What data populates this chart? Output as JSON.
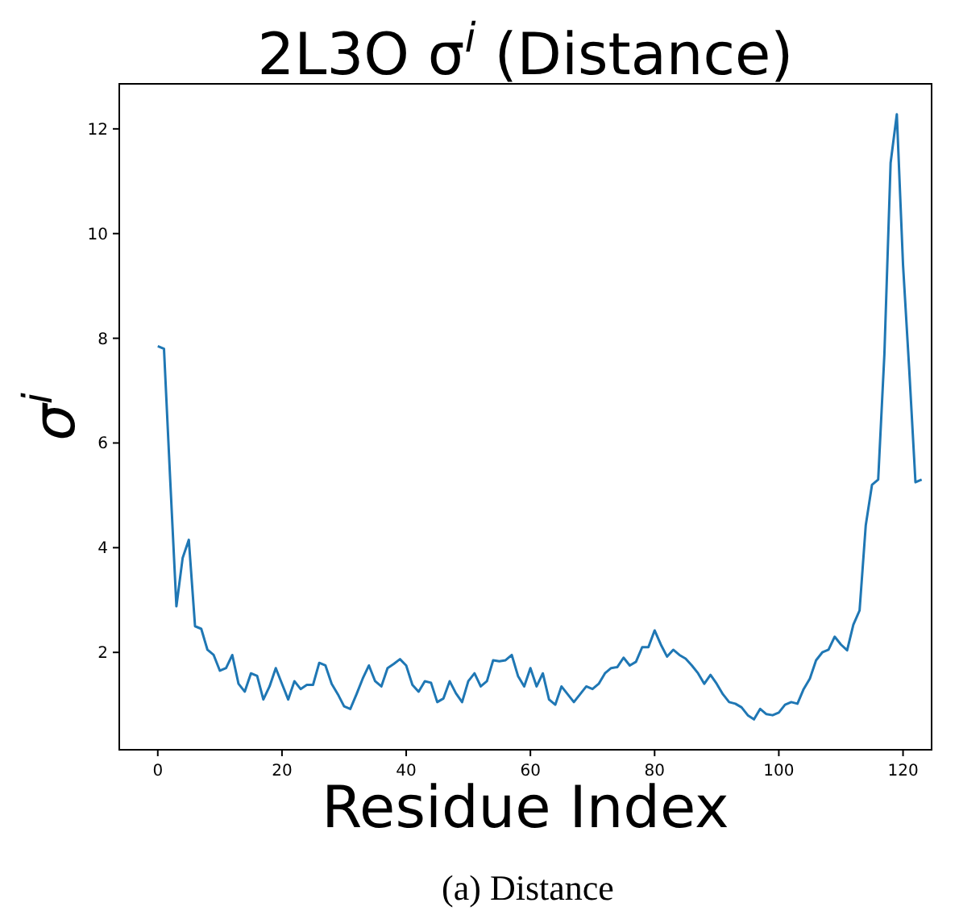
{
  "chart_data": {
    "type": "line",
    "title": "2L3O σ$^{i}$ (Distance)",
    "xlabel": "Residue Index",
    "ylabel": "σ$^{i}$",
    "annotations": [
      "(a) Distance"
    ],
    "x": [
      0,
      1,
      2,
      3,
      4,
      5,
      6,
      7,
      8,
      9,
      10,
      11,
      12,
      13,
      14,
      15,
      16,
      17,
      18,
      19,
      20,
      21,
      22,
      23,
      24,
      25,
      26,
      27,
      28,
      29,
      30,
      31,
      32,
      33,
      34,
      35,
      36,
      37,
      38,
      39,
      40,
      41,
      42,
      43,
      44,
      45,
      46,
      47,
      48,
      49,
      50,
      51,
      52,
      53,
      54,
      55,
      56,
      57,
      58,
      59,
      60,
      61,
      62,
      63,
      64,
      65,
      66,
      67,
      68,
      69,
      70,
      71,
      72,
      73,
      74,
      75,
      76,
      77,
      78,
      79,
      80,
      81,
      82,
      83,
      84,
      85,
      86,
      87,
      88,
      89,
      90,
      91,
      92,
      93,
      94,
      95,
      96,
      97,
      98,
      99,
      100,
      101,
      102,
      103,
      104,
      105,
      106,
      107,
      108,
      109,
      110,
      111,
      112,
      113,
      114,
      115,
      116,
      117,
      118,
      119,
      120,
      121,
      122,
      123
    ],
    "series": [
      {
        "color": "#1f77b4",
        "values": [
          7.85,
          7.8,
          5.3,
          2.88,
          3.8,
          4.15,
          2.5,
          2.45,
          2.05,
          1.95,
          1.65,
          1.7,
          1.95,
          1.4,
          1.25,
          1.6,
          1.55,
          1.1,
          1.35,
          1.7,
          1.4,
          1.1,
          1.45,
          1.3,
          1.38,
          1.38,
          1.8,
          1.75,
          1.4,
          1.2,
          0.97,
          0.92,
          1.2,
          1.5,
          1.75,
          1.45,
          1.35,
          1.7,
          1.78,
          1.87,
          1.75,
          1.38,
          1.25,
          1.45,
          1.42,
          1.05,
          1.12,
          1.45,
          1.22,
          1.05,
          1.45,
          1.6,
          1.35,
          1.45,
          1.85,
          1.83,
          1.85,
          1.95,
          1.55,
          1.35,
          1.7,
          1.35,
          1.6,
          1.1,
          1.0,
          1.35,
          1.2,
          1.05,
          1.2,
          1.35,
          1.3,
          1.4,
          1.6,
          1.7,
          1.72,
          1.9,
          1.75,
          1.82,
          2.1,
          2.1,
          2.42,
          2.15,
          1.92,
          2.05,
          1.95,
          1.88,
          1.75,
          1.6,
          1.4,
          1.57,
          1.4,
          1.2,
          1.05,
          1.02,
          0.95,
          0.8,
          0.72,
          0.92,
          0.82,
          0.8,
          0.85,
          1.0,
          1.05,
          1.02,
          1.3,
          1.5,
          1.85,
          2.0,
          2.05,
          2.3,
          2.15,
          2.04,
          2.53,
          2.8,
          4.43,
          5.2,
          5.3,
          7.7,
          11.35,
          12.28,
          9.4,
          7.4,
          5.25,
          5.3
        ]
      }
    ],
    "xlim": [
      -6.2,
      124.6
    ],
    "ylim": [
      0.14,
      12.86
    ],
    "xticks": [
      0,
      20,
      40,
      60,
      80,
      100,
      120
    ],
    "yticks": [
      2,
      4,
      6,
      8,
      10,
      12
    ],
    "grid": false,
    "marker": "none",
    "line_style": "solid"
  }
}
